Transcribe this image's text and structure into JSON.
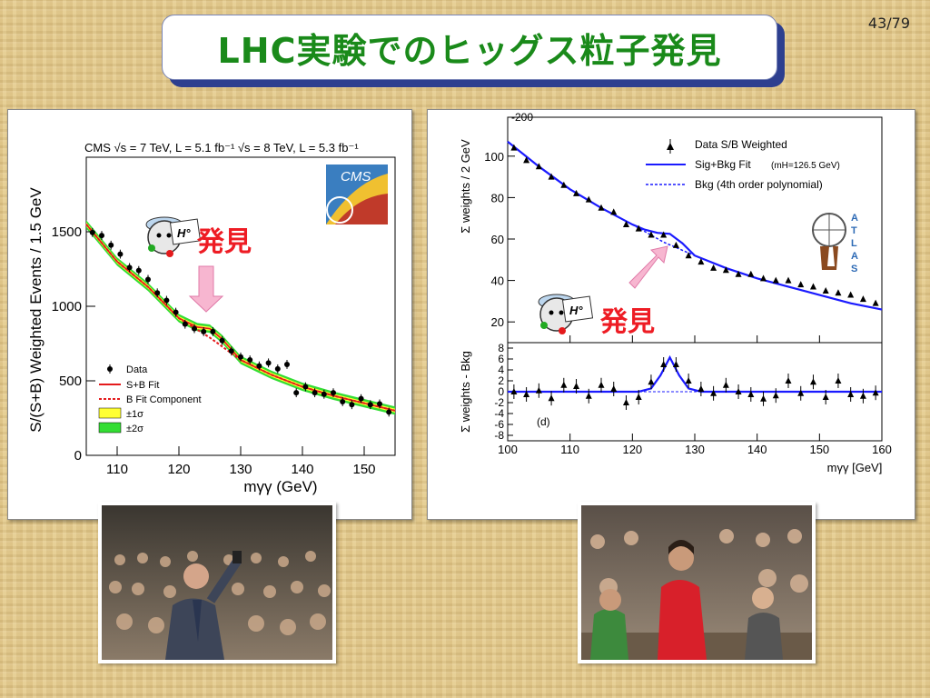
{
  "slide": {
    "title": "LHC実験でのヒッグス粒子発見",
    "page": "43/79",
    "discovery_label": "発見",
    "mascot_label": "H°"
  },
  "colors": {
    "title_green": "#1a8a1a",
    "title_border": "#2d3f8f",
    "arrow_pink": "#f7b6d0",
    "discovery_red": "#ee1c24"
  },
  "chart_data": [
    {
      "type": "scatter",
      "name": "CMS",
      "header": "CMS   √s = 7 TeV, L = 5.1 fb⁻¹  √s = 8 TeV, L = 5.3 fb⁻¹",
      "logo": "CMS",
      "xlabel": "mγγ (GeV)",
      "ylabel": "S/(S+B) Weighted Events / 1.5 GeV",
      "xlim": [
        105,
        155
      ],
      "ylim": [
        0,
        2000
      ],
      "xticks": [
        110,
        120,
        130,
        140,
        150
      ],
      "yticks": [
        0,
        500,
        1000,
        1500
      ],
      "legend": [
        "Data",
        "S+B Fit",
        "B Fit Component",
        "±1σ",
        "±2σ"
      ],
      "points": [
        [
          106,
          1495
        ],
        [
          107.5,
          1475
        ],
        [
          109,
          1410
        ],
        [
          110.5,
          1350
        ],
        [
          112,
          1260
        ],
        [
          113.5,
          1240
        ],
        [
          115,
          1180
        ],
        [
          116.5,
          1090
        ],
        [
          118,
          1040
        ],
        [
          119.5,
          960
        ],
        [
          121,
          880
        ],
        [
          122.5,
          850
        ],
        [
          124,
          830
        ],
        [
          125.5,
          830
        ],
        [
          127,
          770
        ],
        [
          128.5,
          700
        ],
        [
          130,
          660
        ],
        [
          131.5,
          640
        ],
        [
          133,
          600
        ],
        [
          134.5,
          620
        ],
        [
          136,
          580
        ],
        [
          137.5,
          610
        ],
        [
          139,
          420
        ],
        [
          140.5,
          460
        ],
        [
          142,
          420
        ],
        [
          143.5,
          410
        ],
        [
          145,
          420
        ],
        [
          146.5,
          360
        ],
        [
          148,
          340
        ],
        [
          149.5,
          380
        ],
        [
          151,
          340
        ],
        [
          152.5,
          345
        ],
        [
          154,
          290
        ]
      ],
      "fit_sb": [
        [
          105,
          1550
        ],
        [
          110,
          1300
        ],
        [
          115,
          1130
        ],
        [
          120,
          920
        ],
        [
          123,
          860
        ],
        [
          125,
          850
        ],
        [
          127,
          780
        ],
        [
          130,
          640
        ],
        [
          135,
          540
        ],
        [
          140,
          460
        ],
        [
          145,
          400
        ],
        [
          150,
          350
        ],
        [
          155,
          300
        ]
      ],
      "fit_b": [
        [
          105,
          1550
        ],
        [
          110,
          1300
        ],
        [
          115,
          1130
        ],
        [
          120,
          920
        ],
        [
          125,
          790
        ],
        [
          130,
          640
        ],
        [
          135,
          540
        ],
        [
          140,
          460
        ],
        [
          145,
          400
        ],
        [
          150,
          350
        ],
        [
          155,
          300
        ]
      ]
    },
    {
      "type": "scatter",
      "name": "ATLAS",
      "logo": "ATLAS",
      "xlabel": "mγγ [GeV]",
      "ylabel_top": "Σ weights / 2 GeV",
      "ylabel_bottom": "Σ weights - Bkg",
      "panel_label": "(d)",
      "xlim": [
        100,
        160
      ],
      "xticks": [
        100,
        110,
        120,
        130,
        140,
        150,
        160
      ],
      "top_ylim": [
        10,
        110
      ],
      "top_yticks": [
        20,
        40,
        60,
        80,
        100
      ],
      "top_ytop_label": "-200",
      "bottom_ylim": [
        -9,
        9
      ],
      "bottom_yticks": [
        -8,
        -6,
        -4,
        -2,
        0,
        2,
        4,
        6,
        8
      ],
      "legend": [
        "Data S/B Weighted",
        "Sig+Bkg Fit",
        "(mH=126.5 GeV)",
        "Bkg (4th order polynomial)"
      ],
      "points_top": [
        [
          101,
          104
        ],
        [
          103,
          98
        ],
        [
          105,
          95
        ],
        [
          107,
          90
        ],
        [
          109,
          86
        ],
        [
          111,
          82
        ],
        [
          113,
          79
        ],
        [
          115,
          75
        ],
        [
          117,
          73
        ],
        [
          119,
          67
        ],
        [
          121,
          65
        ],
        [
          123,
          62
        ],
        [
          125,
          62
        ],
        [
          127,
          57
        ],
        [
          129,
          52
        ],
        [
          131,
          49
        ],
        [
          133,
          46
        ],
        [
          135,
          45
        ],
        [
          137,
          43
        ],
        [
          139,
          43
        ],
        [
          141,
          41
        ],
        [
          143,
          40
        ],
        [
          145,
          40
        ],
        [
          147,
          38
        ],
        [
          149,
          37
        ],
        [
          151,
          35
        ],
        [
          153,
          34
        ],
        [
          155,
          33
        ],
        [
          157,
          31
        ],
        [
          159,
          29
        ]
      ],
      "fit_top_bkg": [
        [
          100,
          107
        ],
        [
          105,
          95
        ],
        [
          110,
          84
        ],
        [
          115,
          75
        ],
        [
          120,
          67
        ],
        [
          125,
          58.5
        ],
        [
          130,
          52
        ],
        [
          135,
          46
        ],
        [
          140,
          41
        ],
        [
          145,
          37
        ],
        [
          150,
          33
        ],
        [
          155,
          29
        ],
        [
          160,
          26
        ]
      ],
      "fit_top_sig": [
        [
          100,
          107
        ],
        [
          105,
          95
        ],
        [
          110,
          84
        ],
        [
          115,
          75
        ],
        [
          120,
          67
        ],
        [
          122,
          64.5
        ],
        [
          124,
          63
        ],
        [
          126,
          62.5
        ],
        [
          128,
          58
        ],
        [
          130,
          52
        ],
        [
          135,
          46
        ],
        [
          140,
          41
        ],
        [
          145,
          37
        ],
        [
          150,
          33
        ],
        [
          155,
          29
        ],
        [
          160,
          26
        ]
      ],
      "points_bottom": [
        [
          101,
          0
        ],
        [
          103,
          -0.5
        ],
        [
          105,
          0.2
        ],
        [
          107,
          -1.2
        ],
        [
          109,
          1.2
        ],
        [
          111,
          1
        ],
        [
          113,
          -0.8
        ],
        [
          115,
          1.2
        ],
        [
          117,
          0.5
        ],
        [
          119,
          -2
        ],
        [
          121,
          -1
        ],
        [
          123,
          1.8
        ],
        [
          125,
          5
        ],
        [
          127,
          5
        ],
        [
          129,
          2
        ],
        [
          131,
          0.5
        ],
        [
          133,
          -0.3
        ],
        [
          135,
          1.2
        ],
        [
          137,
          0
        ],
        [
          139,
          -0.5
        ],
        [
          141,
          -1.3
        ],
        [
          143,
          -0.7
        ],
        [
          145,
          2
        ],
        [
          147,
          -0.3
        ],
        [
          149,
          1.8
        ],
        [
          151,
          -1
        ],
        [
          153,
          2
        ],
        [
          155,
          -0.5
        ],
        [
          157,
          -0.8
        ],
        [
          159,
          -0.2
        ]
      ],
      "fit_bottom": [
        [
          100,
          0
        ],
        [
          121,
          0
        ],
        [
          123,
          0.6
        ],
        [
          124.5,
          3
        ],
        [
          126,
          6.3
        ],
        [
          127.5,
          3
        ],
        [
          129,
          0.6
        ],
        [
          131,
          0
        ],
        [
          160,
          0
        ]
      ]
    }
  ]
}
